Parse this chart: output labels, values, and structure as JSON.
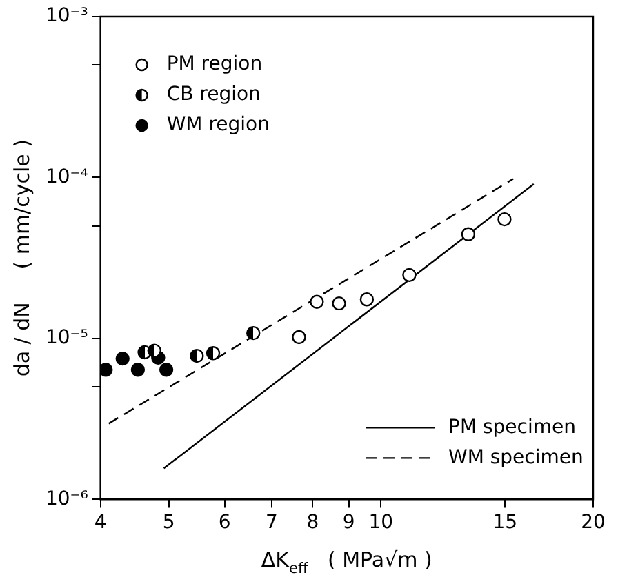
{
  "chart_data": {
    "type": "scatter",
    "xlabel": "ΔK$_{eff}$   ( MPa√m )",
    "ylabel": "da / dN     ( mm/cycle )",
    "log": "xy",
    "grid": false,
    "legend": "bottom right",
    "marker": "circle",
    "xlim": [
      4,
      20
    ],
    "xticks": [
      4,
      5,
      6,
      7,
      8,
      9,
      10,
      15,
      20
    ],
    "ylim": [
      1e-06,
      0.001
    ],
    "yticks": [
      {
        "value": 1e-06,
        "label": "10⁻⁶"
      },
      {
        "value": 5e-06,
        "label": null
      },
      {
        "value": 1e-05,
        "label": "10⁻⁵"
      },
      {
        "value": 5e-05,
        "label": null
      },
      {
        "value": 0.0001,
        "label": "10⁻⁴"
      },
      {
        "value": 0.0005,
        "label": null
      },
      {
        "value": 0.001,
        "label": "10⁻³"
      }
    ],
    "series": [
      {
        "name": "PM region",
        "color": "#000000",
        "x": [
          7.65,
          8.11,
          8.72,
          9.55,
          10.97,
          13.3,
          14.97
        ],
        "values": [
          1.02e-05,
          1.69e-05,
          1.65e-05,
          1.75e-05,
          2.48e-05,
          4.44e-05,
          5.5e-05
        ]
      },
      {
        "name": "CB region",
        "color": "#000000",
        "x": [
          4.62,
          4.77,
          5.48,
          5.78,
          6.59
        ],
        "values": [
          8.2e-06,
          8.4e-06,
          7.8e-06,
          8.1e-06,
          1.08e-05
        ]
      },
      {
        "name": "WM region",
        "color": "#000000",
        "x": [
          4.07,
          4.3,
          4.52,
          4.83,
          4.96
        ],
        "values": [
          6.4e-06,
          7.5e-06,
          6.4e-06,
          7.6e-06,
          6.4e-06
        ]
      },
      {
        "name": "PM specimen",
        "type": "line",
        "color": "#000000",
        "line_style": "solid",
        "marker": "none",
        "x": [
          4.92,
          16.47
        ],
        "values": [
          1.56e-06,
          9.1e-05
        ]
      },
      {
        "name": "WM specimen",
        "type": "line",
        "color": "#000000",
        "line_style": "dashed",
        "marker": "none",
        "x": [
          4.11,
          15.4
        ],
        "values": [
          2.96e-06,
          9.8e-05
        ]
      }
    ]
  }
}
